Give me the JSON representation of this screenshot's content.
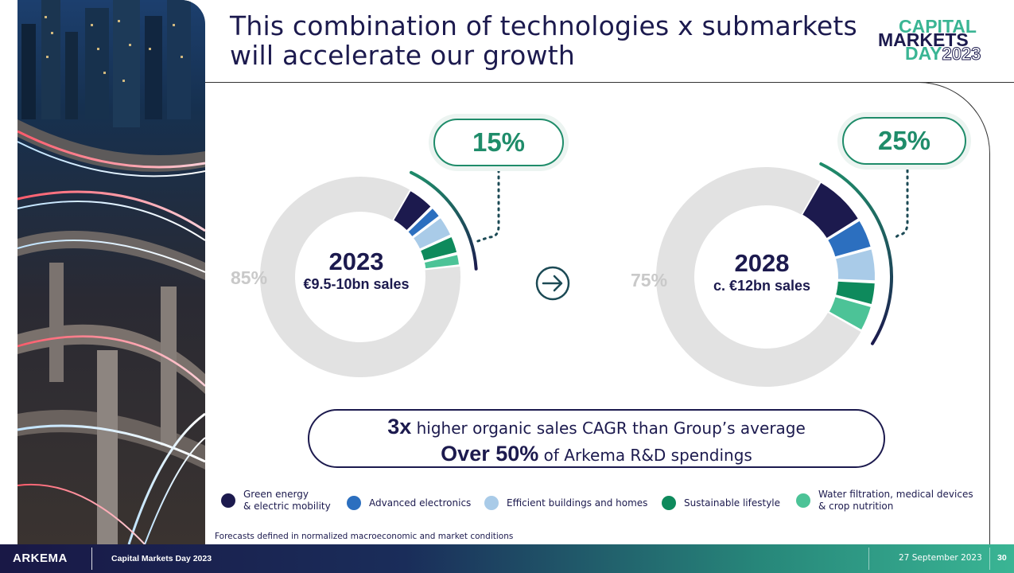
{
  "title": {
    "line1": "This combination of technologies x submarkets",
    "line2": "will accelerate our growth"
  },
  "logo": {
    "word1": "CAPITAL",
    "word2": "MARKETS",
    "word3": "DAY",
    "year": "2023"
  },
  "colors": {
    "navy": "#1c1a4e",
    "green": "#1f8c6a",
    "gray": "#e2e2e2",
    "gray_text": "#c9c9c9"
  },
  "chart_data": [
    {
      "type": "pie",
      "variant": "donut",
      "center_title": "2023",
      "center_subtitle": "€9.5-10bn sales",
      "highlight_label": "15%",
      "remainder_label": "85%",
      "slices": [
        {
          "name": "Green energy & electric mobility",
          "value": 4.5,
          "color": "#1c1a4e"
        },
        {
          "name": "Advanced electronics",
          "value": 2.0,
          "color": "#2c6fbf"
        },
        {
          "name": "Efficient buildings and homes",
          "value": 3.5,
          "color": "#a9cbe8"
        },
        {
          "name": "Sustainable lifestyle",
          "value": 3.0,
          "color": "#0e8a5c"
        },
        {
          "name": "Water filtration, medical devices & crop nutrition",
          "value": 2.0,
          "color": "#4cc397"
        },
        {
          "name": "Other",
          "value": 85,
          "color": "#e2e2e2"
        }
      ]
    },
    {
      "type": "pie",
      "variant": "donut",
      "center_title": "2028",
      "center_subtitle": "c. €12bn sales",
      "highlight_label": "25%",
      "remainder_label": "75%",
      "slices": [
        {
          "name": "Green energy & electric mobility",
          "value": 8.0,
          "color": "#1c1a4e"
        },
        {
          "name": "Advanced electronics",
          "value": 4.5,
          "color": "#2c6fbf"
        },
        {
          "name": "Efficient buildings and homes",
          "value": 5.0,
          "color": "#a9cbe8"
        },
        {
          "name": "Sustainable lifestyle",
          "value": 3.5,
          "color": "#0e8a5c"
        },
        {
          "name": "Water filtration, medical devices & crop nutrition",
          "value": 4.0,
          "color": "#4cc397"
        },
        {
          "name": "Other",
          "value": 75,
          "color": "#e2e2e2"
        }
      ]
    }
  ],
  "summary": {
    "line1_strong": "3x",
    "line1_rest": " higher organic sales CAGR than Group’s average",
    "line2_strong": "Over 50%",
    "line2_rest": " of Arkema R&D spendings"
  },
  "legend": [
    {
      "line1": "Green energy",
      "line2": "& electric mobility",
      "color": "#1c1a4e"
    },
    {
      "line1": "Advanced electronics",
      "line2": "",
      "color": "#2c6fbf"
    },
    {
      "line1": "Efficient buildings and homes",
      "line2": "",
      "color": "#a9cbe8"
    },
    {
      "line1": "Sustainable lifestyle",
      "line2": "",
      "color": "#0e8a5c"
    },
    {
      "line1": "Water filtration, medical devices",
      "line2": "& crop nutrition",
      "color": "#4cc397"
    }
  ],
  "footnote": "Forecasts defined in normalized macroeconomic and market conditions",
  "footer": {
    "brand": "ARKEMA",
    "event": "Capital Markets Day 2023",
    "date": "27 September 2023",
    "page": "30"
  }
}
